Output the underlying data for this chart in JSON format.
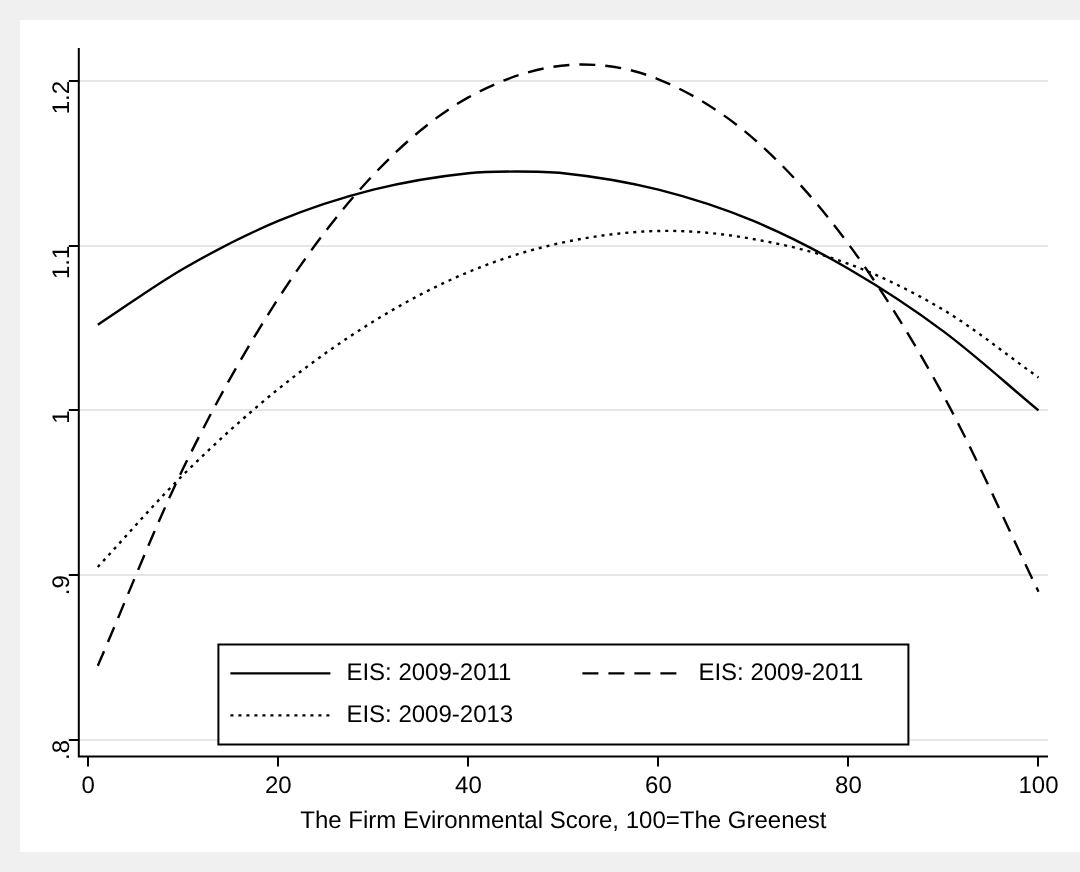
{
  "chart_data": {
    "type": "line",
    "xlabel": "The Firm Evironmental Score, 100=The Greenest",
    "xlim": [
      -1,
      101
    ],
    "xticks": [
      0,
      20,
      40,
      60,
      80,
      100
    ],
    "ylim": [
      0.79,
      1.22
    ],
    "yticks": [
      {
        "value": 0.8,
        "label": ".8"
      },
      {
        "value": 0.9,
        "label": ".9"
      },
      1,
      1.1,
      1.2
    ],
    "grid": "y",
    "legend": "bottom",
    "marker": "none",
    "series": [
      {
        "name": "EIS: 2009-2011",
        "color": "#000000",
        "line_style": "solid",
        "x": [
          1,
          10,
          20,
          30,
          40,
          45,
          50,
          60,
          70,
          80,
          90,
          100
        ],
        "values": [
          1.052,
          1.086,
          1.115,
          1.134,
          1.144,
          1.145,
          1.144,
          1.134,
          1.115,
          1.086,
          1.048,
          1.0
        ]
      },
      {
        "name": "EIS: 2009-2011",
        "color": "#000000",
        "line_style": "dashed",
        "x": [
          1,
          10,
          20,
          30,
          40,
          52,
          60,
          70,
          80,
          90,
          100
        ],
        "values": [
          0.845,
          0.965,
          1.068,
          1.143,
          1.19,
          1.21,
          1.201,
          1.165,
          1.101,
          1.009,
          0.89
        ]
      },
      {
        "name": "EIS: 2009-2013",
        "color": "#000000",
        "line_style": "dotted",
        "x": [
          1,
          10,
          20,
          30,
          40,
          50,
          61,
          70,
          80,
          90,
          100
        ],
        "values": [
          0.905,
          0.961,
          1.013,
          1.054,
          1.084,
          1.102,
          1.109,
          1.104,
          1.089,
          1.061,
          1.02
        ]
      }
    ]
  }
}
